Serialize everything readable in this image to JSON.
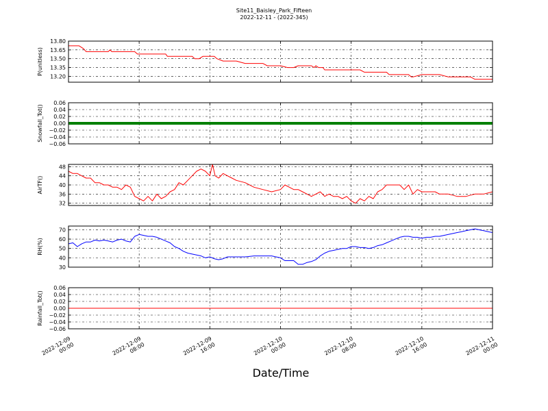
{
  "figure": {
    "title_line1": "Site11_Baisley_Park_Fifteen",
    "title_line2": "2022-12-11 - (2022-345)",
    "xlabel": "Date/Time",
    "x_ticks": [
      {
        "line1": "2022-12-09",
        "line2": "00:00",
        "hour": 0
      },
      {
        "line1": "2022-12-09",
        "line2": "08:00",
        "hour": 8
      },
      {
        "line1": "2022-12-09",
        "line2": "16:00",
        "hour": 16
      },
      {
        "line1": "2022-12-10",
        "line2": "00:00",
        "hour": 24
      },
      {
        "line1": "2022-12-10",
        "line2": "08:00",
        "hour": 32
      },
      {
        "line1": "2022-12-10",
        "line2": "16:00",
        "hour": 40
      },
      {
        "line1": "2022-12-11",
        "line2": "00:00",
        "hour": 48
      }
    ]
  },
  "chart_data": [
    {
      "type": "line",
      "ylabel": "P(unitless)",
      "ylim": [
        13.1,
        13.8
      ],
      "yticks": [
        "13.80",
        "13.65",
        "13.50",
        "13.35",
        "13.20"
      ],
      "ytick_values": [
        13.8,
        13.65,
        13.5,
        13.35,
        13.2
      ],
      "grid": true,
      "color": "#ff0000",
      "series": [
        {
          "x_hours": [
            0,
            1.2,
            1.7,
            2.0,
            3.0,
            4.5,
            4.7,
            4.9,
            6.0,
            7.5,
            7.8,
            9.0,
            11.0,
            11.2,
            12.5,
            14.0,
            14.3,
            14.8,
            15.2,
            16.5,
            16.8,
            17.5,
            19.0,
            20.0,
            22.0,
            22.5,
            24.0,
            24.8,
            25.5,
            26.0,
            27.5,
            27.8,
            28.0,
            28.3,
            28.8,
            29.0,
            29.3,
            30.0,
            33.0,
            33.5,
            35.0,
            36.0,
            36.3,
            36.6,
            38.5,
            38.8,
            39.0,
            40.0,
            40.5,
            41.0,
            42.0,
            43.0,
            43.5,
            44.0,
            45.5,
            46.0,
            48.0
          ],
          "values": [
            13.72,
            13.72,
            13.67,
            13.62,
            13.62,
            13.62,
            13.65,
            13.62,
            13.62,
            13.62,
            13.58,
            13.58,
            13.58,
            13.54,
            13.54,
            13.54,
            13.5,
            13.5,
            13.54,
            13.54,
            13.5,
            13.46,
            13.46,
            13.42,
            13.42,
            13.38,
            13.38,
            13.35,
            13.35,
            13.38,
            13.38,
            13.35,
            13.38,
            13.35,
            13.35,
            13.31,
            13.31,
            13.31,
            13.31,
            13.27,
            13.27,
            13.27,
            13.23,
            13.23,
            13.23,
            13.19,
            13.19,
            13.23,
            13.23,
            13.23,
            13.23,
            13.19,
            13.19,
            13.19,
            13.19,
            13.15,
            13.15
          ]
        }
      ]
    },
    {
      "type": "line",
      "ylabel": "Snowfall_Tot()",
      "ylim": [
        -0.06,
        0.06
      ],
      "yticks": [
        "0.06",
        "0.04",
        "0.02",
        "0.00",
        "−0.02",
        "−0.04",
        "−0.06"
      ],
      "ytick_values": [
        0.06,
        0.04,
        0.02,
        0.0,
        -0.02,
        -0.04,
        -0.06
      ],
      "grid": true,
      "color": "#008000",
      "thick": true,
      "series": [
        {
          "x_hours": [
            0,
            48
          ],
          "values": [
            0.0,
            0.0
          ]
        }
      ]
    },
    {
      "type": "line",
      "ylabel": "AirTF()",
      "ylim": [
        31,
        49
      ],
      "yticks": [
        "48",
        "44",
        "40",
        "36",
        "32"
      ],
      "ytick_values": [
        48,
        44,
        40,
        36,
        32
      ],
      "grid": true,
      "color": "#ff0000",
      "series": [
        {
          "x_hours": [
            0,
            0.5,
            1.0,
            1.5,
            2.0,
            2.5,
            3.0,
            3.5,
            4.0,
            4.5,
            5.0,
            5.5,
            6.0,
            6.5,
            7.0,
            7.5,
            8.0,
            8.5,
            9.0,
            9.5,
            10.0,
            10.5,
            11.0,
            11.5,
            12.0,
            12.5,
            13.0,
            13.5,
            14.0,
            14.5,
            15.0,
            15.5,
            16.0,
            16.3,
            16.6,
            17.0,
            17.5,
            18.0,
            18.5,
            19.0,
            20.0,
            21.0,
            22.0,
            23.0,
            24.0,
            24.5,
            25.0,
            25.5,
            26.0,
            26.5,
            27.0,
            27.5,
            28.0,
            28.5,
            29.0,
            29.5,
            30.0,
            30.5,
            31.0,
            31.5,
            32.0,
            32.5,
            33.0,
            33.5,
            34.0,
            34.5,
            35.0,
            35.5,
            36.0,
            36.5,
            37.0,
            37.5,
            38.0,
            38.5,
            39.0,
            39.5,
            40.0,
            40.5,
            41.0,
            41.5,
            42.0,
            43.0,
            44.0,
            45.0,
            46.0,
            47.0,
            48.0
          ],
          "values": [
            46,
            45,
            45,
            44,
            43,
            43,
            41,
            41,
            40,
            40,
            39,
            39,
            38,
            40,
            39,
            35,
            34,
            33,
            35,
            33,
            36,
            34,
            35,
            37,
            38,
            41,
            40,
            42,
            44,
            46,
            47,
            46,
            44,
            49,
            44,
            43,
            45,
            44,
            43,
            42,
            41,
            39,
            38,
            37,
            38,
            40,
            39,
            38,
            38,
            37,
            36,
            35,
            36,
            37,
            35,
            36,
            35,
            35,
            34,
            35,
            33,
            32,
            34,
            33,
            35,
            34,
            37,
            38,
            40,
            40,
            40,
            40,
            38,
            40,
            36,
            38,
            37,
            37,
            37,
            37,
            36,
            36,
            35,
            35,
            36,
            36,
            37
          ]
        }
      ]
    },
    {
      "type": "line",
      "ylabel": "RH(%)",
      "ylim": [
        30,
        74
      ],
      "yticks": [
        "70",
        "60",
        "50",
        "40",
        "30"
      ],
      "ytick_values": [
        70,
        60,
        50,
        40,
        30
      ],
      "grid": true,
      "color": "#0000ff",
      "series": [
        {
          "x_hours": [
            0,
            0.5,
            1.0,
            1.5,
            2.0,
            2.5,
            3.0,
            3.5,
            4.0,
            4.5,
            5.0,
            5.5,
            6.0,
            6.5,
            7.0,
            7.5,
            8.0,
            8.5,
            9.0,
            9.5,
            10.0,
            10.5,
            11.0,
            11.5,
            12.0,
            12.5,
            13.0,
            13.5,
            14.0,
            14.5,
            15.0,
            15.5,
            16.0,
            16.5,
            17.0,
            17.5,
            18.0,
            19.0,
            20.0,
            21.0,
            22.0,
            23.0,
            24.0,
            24.5,
            25.0,
            25.5,
            26.0,
            26.5,
            27.0,
            27.5,
            28.0,
            28.5,
            29.0,
            29.5,
            30.0,
            30.5,
            31.0,
            31.5,
            32.0,
            32.5,
            33.0,
            33.5,
            34.0,
            34.5,
            35.0,
            35.5,
            36.0,
            36.5,
            37.0,
            37.5,
            38.0,
            38.5,
            39.0,
            39.5,
            40.0,
            40.5,
            41.0,
            41.5,
            42.0,
            42.5,
            43.0,
            43.5,
            44.0,
            44.5,
            45.0,
            45.5,
            46.0,
            46.5,
            47.0,
            47.5,
            48.0
          ],
          "values": [
            55,
            56,
            52,
            55,
            57,
            57,
            59,
            58,
            59,
            58,
            57,
            59,
            60,
            58,
            57,
            63,
            65,
            64,
            63,
            63,
            62,
            60,
            58,
            56,
            52,
            50,
            47,
            45,
            44,
            43,
            42,
            40,
            41,
            39,
            38,
            39,
            41,
            41,
            41,
            42,
            42,
            42,
            40,
            37,
            37,
            37,
            33,
            33,
            35,
            36,
            38,
            42,
            45,
            47,
            48,
            49,
            50,
            50,
            52,
            52,
            51,
            51,
            50,
            51,
            53,
            54,
            56,
            58,
            60,
            62,
            63,
            63,
            62,
            62,
            61,
            62,
            62,
            63,
            63,
            64,
            65,
            66,
            67,
            68,
            69,
            70,
            71,
            70,
            69,
            68,
            67
          ]
        }
      ]
    },
    {
      "type": "line",
      "ylabel": "Rainfall_Tot()",
      "ylim": [
        -0.06,
        0.06
      ],
      "yticks": [
        "0.06",
        "0.04",
        "0.02",
        "0.00",
        "−0.02",
        "−0.04",
        "−0.06"
      ],
      "ytick_values": [
        0.06,
        0.04,
        0.02,
        0.0,
        -0.02,
        -0.04,
        -0.06
      ],
      "grid": true,
      "color": "#ff0000",
      "series": [
        {
          "x_hours": [
            0,
            48
          ],
          "values": [
            0.0,
            0.0
          ]
        }
      ]
    }
  ]
}
